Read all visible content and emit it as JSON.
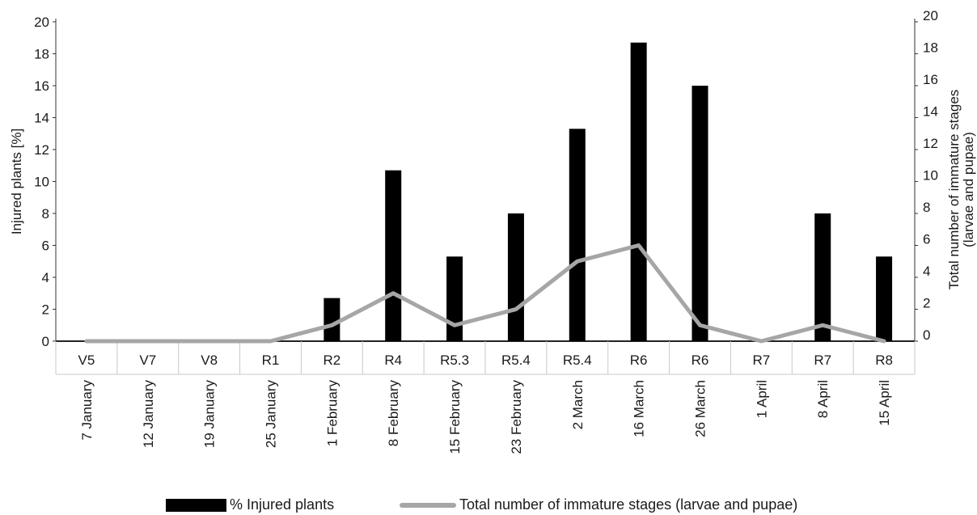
{
  "chart_data": {
    "type": "bar",
    "categories": [
      "V5",
      "V7",
      "V8",
      "R1",
      "R2",
      "R4",
      "R5.3",
      "R5.4",
      "R5.4",
      "R6",
      "R6",
      "R7",
      "R7",
      "R8"
    ],
    "dates": [
      "7 January",
      "12 January",
      "19 January",
      "25 January",
      "1 February",
      "8 February",
      "15 February",
      "23 February",
      "2 March",
      "16 March",
      "26 March",
      "1 April",
      "8 April",
      "15 April"
    ],
    "series": [
      {
        "name": "% Injured plants",
        "type": "bar",
        "axis": "left",
        "color": "#000000",
        "values": [
          0,
          0,
          0,
          0,
          2.7,
          10.7,
          5.3,
          8.0,
          13.3,
          18.7,
          16.0,
          0,
          8.0,
          5.3
        ]
      },
      {
        "name": "Total number of immature stages (larvae and pupae)",
        "type": "line",
        "axis": "right",
        "color": "#a6a6a6",
        "values": [
          0,
          0,
          0,
          0,
          1,
          3,
          1,
          2,
          5,
          6,
          1,
          0,
          1,
          0
        ]
      }
    ],
    "ylabel": "Injured plants [%]",
    "y2label_line1": "Total number of immature stages",
    "y2label_line2": "(larvae and pupae)",
    "ylim": [
      0,
      20
    ],
    "y2lim": [
      0,
      20
    ],
    "yticks": [
      0,
      2,
      4,
      6,
      8,
      10,
      12,
      14,
      16,
      18,
      20
    ],
    "legend_position": "bottom",
    "grid": false
  }
}
